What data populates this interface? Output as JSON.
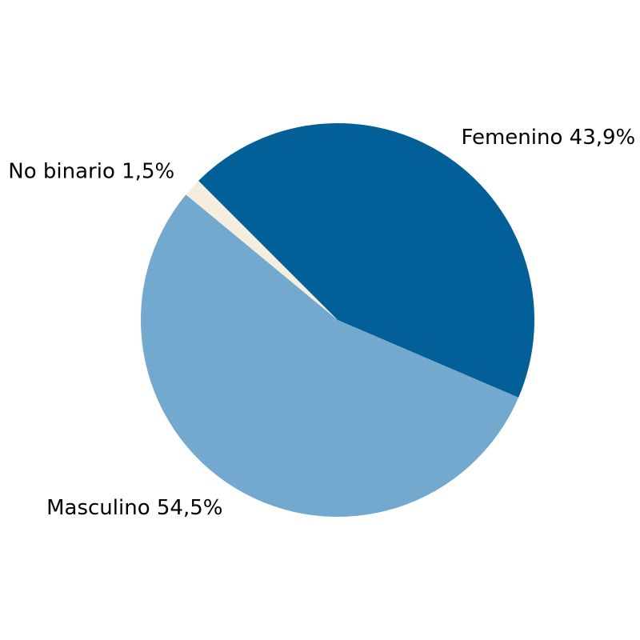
{
  "chart_data": {
    "type": "pie",
    "title": "",
    "start_angle_deg": 135,
    "direction": "clockwise",
    "slices": [
      {
        "label": "Femenino 43,9%",
        "category": "Femenino",
        "value": 43.9,
        "color": "#035F98"
      },
      {
        "label": "Masculino 54,5%",
        "category": "Masculino",
        "value": 54.5,
        "color": "#74A9CF"
      },
      {
        "label": "No binario 1,5%",
        "category": "No binario",
        "value": 1.5,
        "color": "#F5EEDE"
      }
    ]
  }
}
